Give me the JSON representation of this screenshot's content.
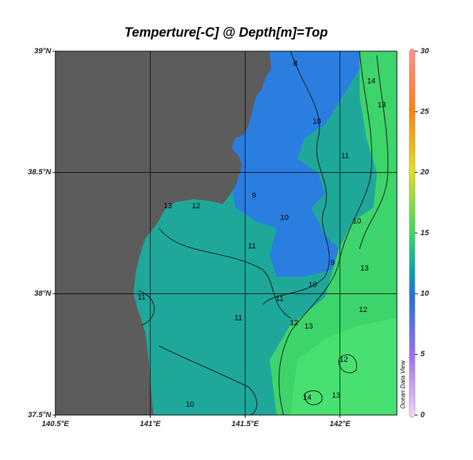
{
  "title": "Temperture[-C] @ Depth[m]=Top",
  "map": {
    "xlim": [
      140.5,
      142.3
    ],
    "ylim": [
      37.5,
      39
    ],
    "xticks": [
      {
        "value": 140.5,
        "label": "140.5°E"
      },
      {
        "value": 141,
        "label": "141°E"
      },
      {
        "value": 141.5,
        "label": "141.5°E"
      },
      {
        "value": 142,
        "label": "142°E"
      }
    ],
    "yticks": [
      {
        "value": 37.5,
        "label": "37.5°N"
      },
      {
        "value": 38,
        "label": "38°N"
      },
      {
        "value": 38.5,
        "label": "38.5°N"
      },
      {
        "value": 39,
        "label": "39°N"
      }
    ],
    "grid": true,
    "land_color": "#5c5c5c"
  },
  "contour_labels": {
    "values": [
      13,
      12,
      10,
      10,
      11,
      11,
      12,
      13,
      11,
      11,
      10,
      14,
      13,
      12,
      13,
      12,
      11,
      10,
      14,
      13,
      9,
      9,
      8,
      10
    ],
    "lon": [
      141.093,
      141.242,
      141.707,
      141.878,
      141.536,
      141.682,
      141.758,
      141.835,
      140.955,
      141.464,
      141.209,
      141.827,
      141.98,
      142.02,
      142.129,
      142.122,
      142.027,
      142.089,
      142.165,
      142.22,
      141.962,
      141.547,
      141.765,
      141.856
    ],
    "lat": [
      38.361,
      38.361,
      38.313,
      38.709,
      38.196,
      37.979,
      37.879,
      37.865,
      37.985,
      37.899,
      37.543,
      37.571,
      37.58,
      37.728,
      38.105,
      37.933,
      38.567,
      38.298,
      38.875,
      38.778,
      38.127,
      38.404,
      38.949,
      38.036
    ]
  },
  "colorbar": {
    "lim": [
      0,
      30
    ],
    "ticks": [
      0,
      5,
      10,
      15,
      20,
      25,
      30
    ]
  },
  "watermark": "Ocean Data View"
}
